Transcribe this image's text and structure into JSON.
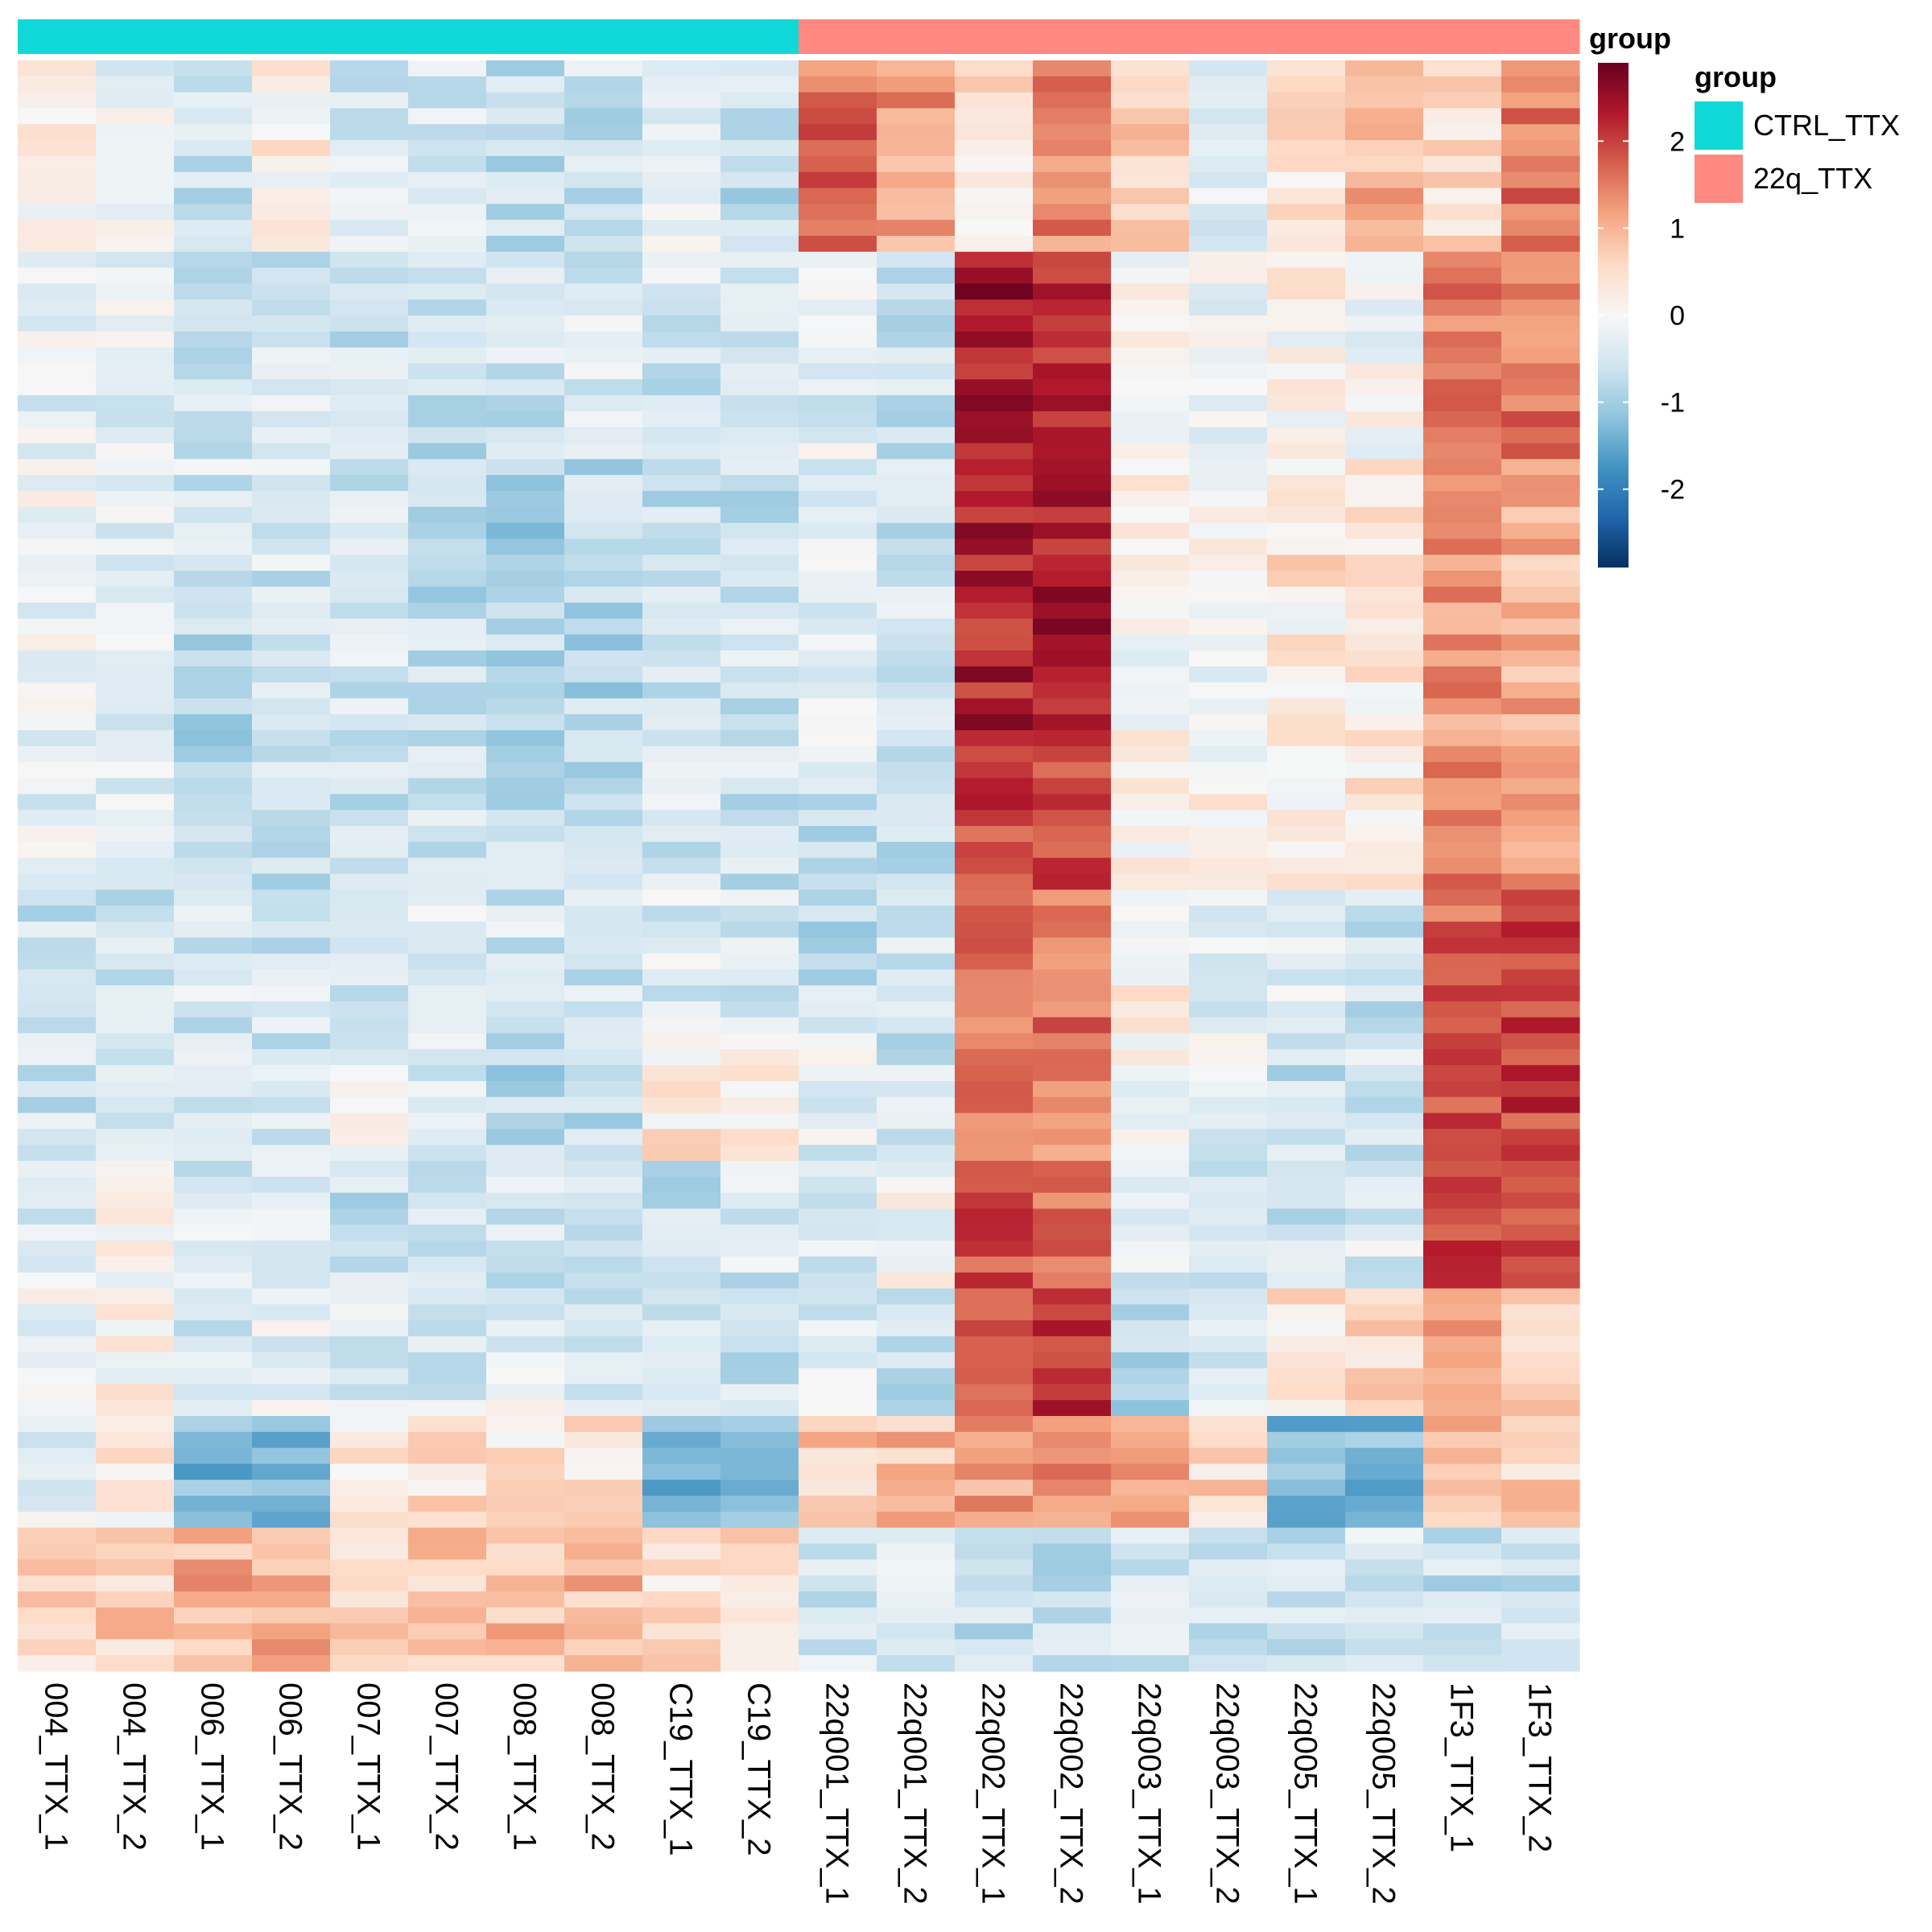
{
  "chart_data": {
    "type": "heatmap",
    "title": "",
    "n_rows": 101,
    "columns": [
      "004_TTX_1",
      "004_TTX_2",
      "006_TTX_1",
      "006_TTX_2",
      "007_TTX_1",
      "007_TTX_2",
      "008_TTX_1",
      "008_TTX_2",
      "C19_TTX_1",
      "C19_TTX_2",
      "22q001_TTX_1",
      "22q001_TTX_2",
      "22q002_TTX_1",
      "22q002_TTX_2",
      "22q003_TTX_1",
      "22q003_TTX_2",
      "22q005_TTX_1",
      "22q005_TTX_2",
      "1F3_TTX_1",
      "1F3_TTX_2"
    ],
    "column_group": [
      "CTRL_TTX",
      "CTRL_TTX",
      "CTRL_TTX",
      "CTRL_TTX",
      "CTRL_TTX",
      "CTRL_TTX",
      "CTRL_TTX",
      "CTRL_TTX",
      "CTRL_TTX",
      "CTRL_TTX",
      "22q_TTX",
      "22q_TTX",
      "22q_TTX",
      "22q_TTX",
      "22q_TTX",
      "22q_TTX",
      "22q_TTX",
      "22q_TTX",
      "22q_TTX",
      "22q_TTX"
    ],
    "annotation": {
      "label": "group",
      "legend_title": "group",
      "levels": [
        {
          "name": "CTRL_TTX",
          "color": "#10D8D8"
        },
        {
          "name": "22q_TTX",
          "color": "#FF8880"
        }
      ]
    },
    "color_scale": {
      "label": "group",
      "min": -2.9,
      "max": 2.9,
      "ticks": [
        2,
        1,
        0,
        -1,
        -2
      ],
      "tick_labels": [
        "2",
        "1",
        "0",
        "-1",
        "-2"
      ],
      "stops": [
        "#053061",
        "#2166AC",
        "#4393C3",
        "#92C5DE",
        "#D1E5F0",
        "#F7F7F7",
        "#FDDBC7",
        "#F4A582",
        "#D6604D",
        "#B2182B",
        "#67001F"
      ]
    },
    "row_blocks": [
      {
        "rows": [
          0,
          11
        ],
        "values": [
          0.2,
          -0.2,
          -0.6,
          0.2,
          -0.5,
          -0.4,
          -0.7,
          -0.6,
          -0.2,
          -0.7,
          1.6,
          1.2,
          0.4,
          1.4,
          0.8,
          -0.4,
          0.3,
          1.0,
          0.5,
          1.6
        ]
      },
      {
        "rows": [
          12,
          24
        ],
        "values": [
          -0.3,
          -0.3,
          -0.5,
          -0.5,
          -0.6,
          -0.7,
          -0.6,
          -0.5,
          -0.5,
          -0.5,
          -0.3,
          -0.6,
          2.4,
          2.3,
          -0.1,
          -0.2,
          0.1,
          -0.1,
          1.4,
          1.5
        ]
      },
      {
        "rows": [
          25,
          33
        ],
        "values": [
          -0.1,
          -0.2,
          -0.5,
          -0.5,
          -0.6,
          -0.8,
          -0.9,
          -0.7,
          -0.7,
          -0.7,
          -0.4,
          -0.6,
          2.4,
          2.4,
          0.1,
          0.0,
          0.4,
          0.3,
          1.2,
          1.0
        ]
      },
      {
        "rows": [
          34,
          43
        ],
        "values": [
          -0.2,
          -0.3,
          -0.8,
          -0.5,
          -0.5,
          -0.7,
          -0.8,
          -0.8,
          -0.6,
          -0.6,
          -0.4,
          -0.6,
          2.3,
          2.4,
          0.0,
          -0.1,
          0.2,
          0.3,
          1.3,
          1.1
        ]
      },
      {
        "rows": [
          44,
          51
        ],
        "values": [
          -0.3,
          -0.4,
          -0.6,
          -0.6,
          -0.6,
          -0.6,
          -0.6,
          -0.8,
          -0.5,
          -0.6,
          -0.7,
          -0.7,
          2.0,
          1.9,
          0.2,
          0.3,
          0.1,
          0.3,
          1.4,
          1.3
        ]
      },
      {
        "rows": [
          52,
          60
        ],
        "values": [
          -0.6,
          -0.6,
          -0.5,
          -0.5,
          -0.4,
          -0.4,
          -0.5,
          -0.5,
          -0.4,
          -0.5,
          -0.7,
          -0.6,
          1.5,
          1.6,
          0.2,
          -0.3,
          -0.4,
          -0.6,
          1.7,
          1.9
        ]
      },
      {
        "rows": [
          61,
          68
        ],
        "values": [
          -0.6,
          -0.5,
          -0.6,
          -0.5,
          -0.2,
          -0.4,
          -0.8,
          -0.7,
          0.3,
          0.2,
          -0.3,
          -0.6,
          1.5,
          1.4,
          0.0,
          -0.3,
          -0.6,
          -0.5,
          1.9,
          2.0
        ]
      },
      {
        "rows": [
          69,
          76
        ],
        "values": [
          -0.3,
          0.0,
          -0.4,
          -0.3,
          -0.6,
          -0.6,
          -0.5,
          -0.4,
          -0.6,
          -0.5,
          -0.5,
          -0.1,
          1.8,
          1.6,
          -0.4,
          -0.6,
          -0.6,
          -0.4,
          2.0,
          1.8
        ]
      },
      {
        "rows": [
          77,
          84
        ],
        "values": [
          -0.2,
          0.1,
          -0.4,
          -0.2,
          -0.5,
          -0.4,
          -0.2,
          -0.4,
          -0.4,
          -0.6,
          -0.4,
          -0.7,
          2.0,
          2.1,
          -0.8,
          -0.5,
          0.4,
          0.6,
          1.3,
          0.8
        ]
      },
      {
        "rows": [
          85,
          91
        ],
        "values": [
          -0.3,
          0.2,
          -1.3,
          -1.4,
          0.3,
          0.4,
          0.3,
          0.4,
          -1.4,
          -1.3,
          0.7,
          0.9,
          1.2,
          1.3,
          1.0,
          0.6,
          -1.2,
          -1.3,
          0.9,
          0.6
        ]
      },
      {
        "rows": [
          92,
          100
        ],
        "values": [
          0.6,
          0.7,
          1.0,
          1.1,
          0.6,
          0.7,
          0.9,
          0.9,
          0.5,
          0.6,
          -0.5,
          -0.4,
          -0.6,
          -0.6,
          -0.6,
          -0.6,
          -0.5,
          -0.4,
          -0.7,
          -0.6
        ]
      }
    ]
  }
}
